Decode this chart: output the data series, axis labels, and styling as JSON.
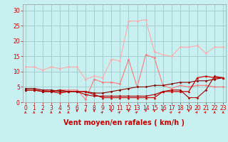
{
  "background_color": "#c8f0f0",
  "grid_color": "#a0c8c8",
  "xlabel": "Vent moyen/en rafales ( km/h )",
  "xlabel_color": "#cc0000",
  "xlabel_fontsize": 7,
  "yticks": [
    0,
    5,
    10,
    15,
    20,
    25,
    30
  ],
  "xticks": [
    0,
    1,
    2,
    3,
    4,
    5,
    6,
    7,
    8,
    9,
    10,
    11,
    12,
    13,
    14,
    15,
    16,
    17,
    18,
    19,
    20,
    21,
    22,
    23
  ],
  "xlim": [
    -0.3,
    23.3
  ],
  "ylim": [
    0,
    32
  ],
  "tick_color": "#cc0000",
  "tick_fontsize": 5.5,
  "series": [
    {
      "x": [
        0,
        1,
        2,
        3,
        4,
        5,
        6,
        7,
        8,
        9,
        10,
        11,
        12,
        13,
        14,
        15,
        16,
        17,
        18,
        19,
        20,
        21,
        22,
        23
      ],
      "y": [
        11.5,
        11.5,
        10.5,
        11.5,
        11.0,
        11.5,
        11.5,
        7.5,
        8.5,
        8.0,
        14.0,
        13.5,
        26.5,
        26.5,
        27.0,
        16.5,
        15.5,
        15.0,
        18.0,
        18.0,
        18.5,
        16.0,
        18.0,
        18.0
      ],
      "color": "#ffaaaa",
      "lw": 0.8,
      "marker": "D",
      "markersize": 1.5,
      "zorder": 2
    },
    {
      "x": [
        0,
        1,
        2,
        3,
        4,
        5,
        6,
        7,
        8,
        9,
        10,
        11,
        12,
        13,
        14,
        15,
        16,
        17,
        18,
        19,
        20,
        21,
        22,
        23
      ],
      "y": [
        4.0,
        4.0,
        4.0,
        3.5,
        4.0,
        4.0,
        4.0,
        1.0,
        7.5,
        6.5,
        6.5,
        6.0,
        14.0,
        5.0,
        15.5,
        14.5,
        5.5,
        4.5,
        5.5,
        5.0,
        5.5,
        5.5,
        5.0,
        5.0
      ],
      "color": "#ff7777",
      "lw": 0.8,
      "marker": "D",
      "markersize": 1.5,
      "zorder": 3
    },
    {
      "x": [
        0,
        1,
        2,
        3,
        4,
        5,
        6,
        7,
        8,
        9,
        10,
        11,
        12,
        13,
        14,
        15,
        16,
        17,
        18,
        19,
        20,
        21,
        22,
        23
      ],
      "y": [
        4.0,
        4.0,
        3.5,
        3.5,
        3.0,
        3.5,
        3.5,
        3.5,
        2.5,
        1.5,
        1.5,
        1.5,
        1.5,
        1.5,
        1.5,
        1.5,
        3.5,
        3.5,
        3.5,
        3.5,
        8.0,
        8.5,
        8.0,
        8.0
      ],
      "color": "#cc0000",
      "lw": 0.9,
      "marker": "^",
      "markersize": 2.0,
      "zorder": 4
    },
    {
      "x": [
        0,
        1,
        2,
        3,
        4,
        5,
        6,
        7,
        8,
        9,
        10,
        11,
        12,
        13,
        14,
        15,
        16,
        17,
        18,
        19,
        20,
        21,
        22,
        23
      ],
      "y": [
        4.0,
        4.0,
        3.5,
        3.5,
        4.0,
        3.5,
        3.5,
        2.5,
        2.0,
        2.0,
        2.0,
        2.0,
        2.0,
        2.0,
        2.0,
        2.5,
        3.5,
        4.0,
        4.0,
        1.5,
        1.5,
        4.0,
        8.5,
        8.0
      ],
      "color": "#aa0000",
      "lw": 0.8,
      "marker": "D",
      "markersize": 1.5,
      "zorder": 4
    },
    {
      "x": [
        0,
        1,
        2,
        3,
        4,
        5,
        6,
        7,
        8,
        9,
        10,
        11,
        12,
        13,
        14,
        15,
        16,
        17,
        18,
        19,
        20,
        21,
        22,
        23
      ],
      "y": [
        4.5,
        4.5,
        4.0,
        4.0,
        3.5,
        3.5,
        3.5,
        3.5,
        3.0,
        3.0,
        3.5,
        4.0,
        4.5,
        5.0,
        5.0,
        5.5,
        5.5,
        6.0,
        6.5,
        6.5,
        7.0,
        7.0,
        7.5,
        8.0
      ],
      "color": "#880000",
      "lw": 0.8,
      "marker": "D",
      "markersize": 1.5,
      "zorder": 3
    }
  ],
  "wind_arrows": {
    "x": [
      0,
      1,
      2,
      3,
      4,
      5,
      6,
      7,
      8,
      9,
      10,
      11,
      12,
      13,
      14,
      15,
      16,
      17,
      18,
      19,
      20,
      21,
      22,
      23
    ],
    "directions": [
      90,
      90,
      45,
      90,
      90,
      90,
      270,
      270,
      270,
      45,
      270,
      45,
      270,
      45,
      270,
      270,
      270,
      45,
      45,
      270,
      45,
      45,
      90,
      90
    ],
    "color": "#cc0000"
  }
}
